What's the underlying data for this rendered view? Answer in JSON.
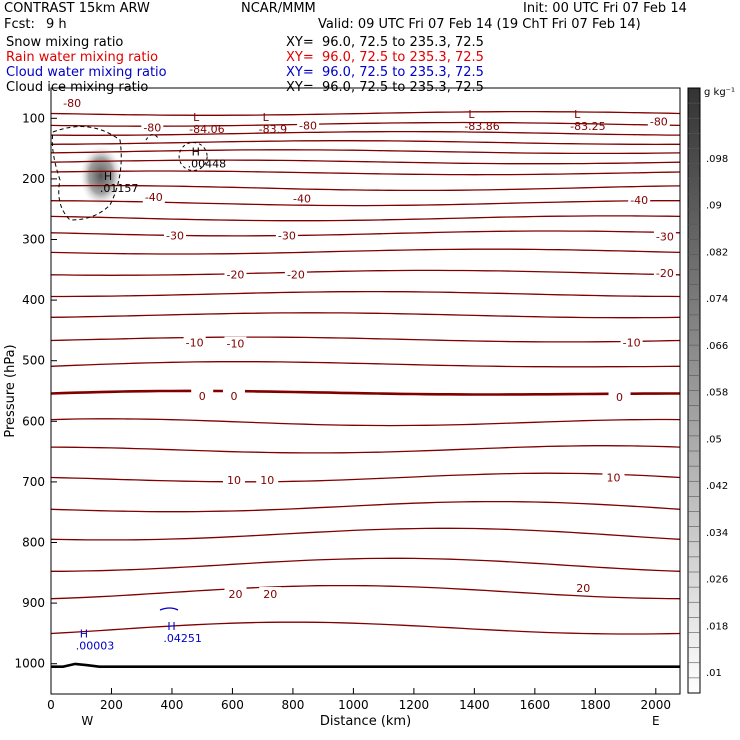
{
  "header": {
    "model": "CONTRAST 15km ARW",
    "org": "NCAR/MMM",
    "init": "Init: 00 UTC Fri 07 Feb 14",
    "fcst_label": "Fcst:",
    "fcst_value": "9 h",
    "valid": "Valid: 09 UTC Fri 07 Feb 14 (19 ChT Fri 07 Feb 14)",
    "fields": [
      {
        "name": "Snow mixing ratio",
        "xy": "XY=  96.0, 72.5 to 235.3, 72.5",
        "color": "#000000"
      },
      {
        "name": "Rain water mixing ratio",
        "xy": "XY=  96.0, 72.5 to 235.3, 72.5",
        "color": "#e00000"
      },
      {
        "name": "Cloud water mixing ratio",
        "xy": "XY=  96.0, 72.5 to 235.3, 72.5",
        "color": "#0000c8"
      },
      {
        "name": "Cloud ice mixing ratio",
        "xy": "XY=  96.0, 72.5 to 235.3, 72.5",
        "color": "#000000"
      }
    ]
  },
  "chart_data": {
    "type": "contour",
    "xlabel": "Distance (km)",
    "ylabel": "Pressure (hPa)",
    "xlim": [
      0,
      2080
    ],
    "ylim": [
      1050,
      50
    ],
    "x_ticks": [
      0,
      200,
      400,
      600,
      800,
      1000,
      1200,
      1400,
      1600,
      1800,
      2000
    ],
    "y_ticks": [
      100,
      200,
      300,
      400,
      500,
      600,
      700,
      800,
      900,
      1000
    ],
    "end_labels": {
      "left": "W",
      "right": "E"
    },
    "colorbar": {
      "unit": "g kg⁻¹",
      "ticks": [
        ".01",
        ".018",
        ".026",
        ".034",
        ".042",
        ".05",
        ".058",
        ".066",
        ".074",
        ".082",
        ".09",
        ".098"
      ]
    },
    "temperature_labels": [
      {
        "text": "-80",
        "x": 70,
        "p": 75
      },
      {
        "text": "-80",
        "x": 335,
        "p": 115
      },
      {
        "text": "-80",
        "x": 850,
        "p": 112
      },
      {
        "text": "-80",
        "x": 2010,
        "p": 105
      },
      {
        "text": "-40",
        "x": 340,
        "p": 230
      },
      {
        "text": "-40",
        "x": 830,
        "p": 232
      },
      {
        "text": "-40",
        "x": 1945,
        "p": 235
      },
      {
        "text": "-30",
        "x": 410,
        "p": 293
      },
      {
        "text": "-30",
        "x": 780,
        "p": 293
      },
      {
        "text": "-30",
        "x": 2030,
        "p": 295
      },
      {
        "text": "-20",
        "x": 610,
        "p": 358
      },
      {
        "text": "-20",
        "x": 810,
        "p": 358
      },
      {
        "text": "-20",
        "x": 2030,
        "p": 355
      },
      {
        "text": "-10",
        "x": 475,
        "p": 470
      },
      {
        "text": "-10",
        "x": 610,
        "p": 472
      },
      {
        "text": "-10",
        "x": 1920,
        "p": 470
      },
      {
        "text": "0",
        "x": 500,
        "p": 558
      },
      {
        "text": "0",
        "x": 605,
        "p": 558
      },
      {
        "text": "0",
        "x": 1880,
        "p": 560
      },
      {
        "text": "10",
        "x": 605,
        "p": 697
      },
      {
        "text": "10",
        "x": 715,
        "p": 697
      },
      {
        "text": "10",
        "x": 1860,
        "p": 693
      },
      {
        "text": "20",
        "x": 610,
        "p": 885
      },
      {
        "text": "20",
        "x": 725,
        "p": 885
      },
      {
        "text": "20",
        "x": 1760,
        "p": 875
      }
    ],
    "extrema": [
      {
        "mark": "L",
        "value": "-84.06",
        "x": 470,
        "p": 108,
        "color": "#800000"
      },
      {
        "mark": "L",
        "value": "-83.9",
        "x": 700,
        "p": 108,
        "color": "#800000"
      },
      {
        "mark": "L",
        "value": "-83.86",
        "x": 1380,
        "p": 103,
        "color": "#800000"
      },
      {
        "mark": "L",
        "value": "-83.25",
        "x": 1730,
        "p": 103,
        "color": "#800000"
      },
      {
        "mark": "H",
        "value": ".00448",
        "x": 465,
        "p": 165,
        "color": "#000000"
      },
      {
        "mark": "H",
        "value": ".01157",
        "x": 175,
        "p": 205,
        "color": "#000000"
      },
      {
        "mark": "H",
        "value": ".00003",
        "x": 95,
        "p": 960,
        "color": "#0000c8"
      },
      {
        "mark": "H",
        "value": ".04251",
        "x": 385,
        "p": 948,
        "color": "#0000c8"
      }
    ],
    "isotherm_levels": [
      -80,
      -70,
      -60,
      -50,
      -40,
      -30,
      -20,
      -10,
      0,
      10,
      20
    ]
  }
}
